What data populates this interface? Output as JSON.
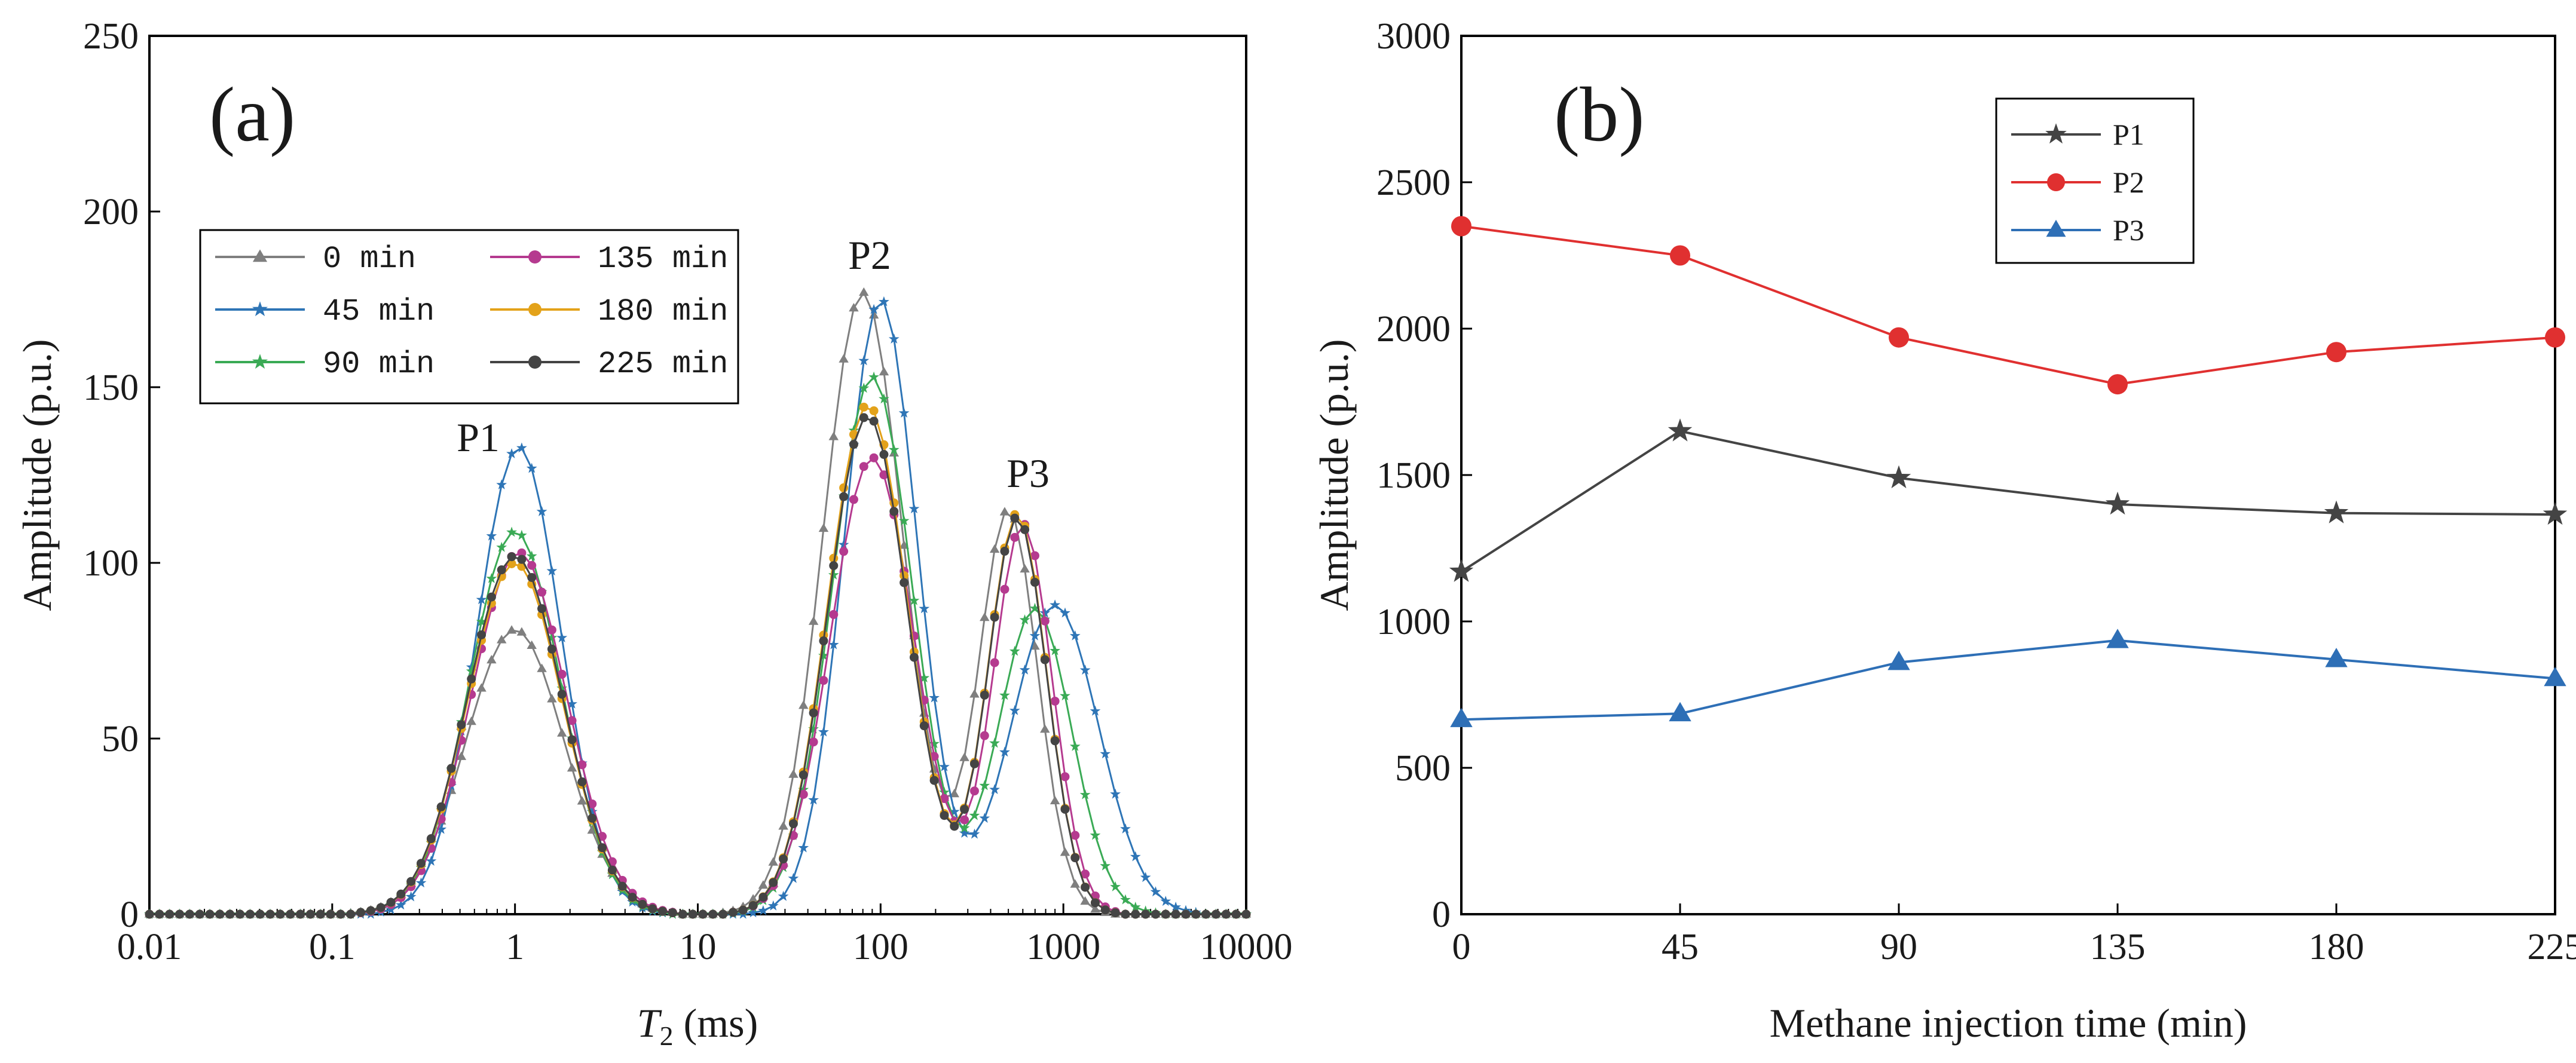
{
  "chart_data": [
    {
      "type": "line",
      "panel_label": "(a)",
      "xlabel_italic": "T",
      "xlabel_sub": "2",
      "xlabel_rest": " (ms)",
      "ylabel": "Amplitude (p.u.)",
      "xscale": "log",
      "xlim": [
        0.01,
        10000
      ],
      "ylim": [
        0,
        250
      ],
      "xticks": [
        "0.01",
        "0.1",
        "1",
        "10",
        "100",
        "1000",
        "10000"
      ],
      "yticks": [
        "0",
        "50",
        "100",
        "150",
        "200",
        "250"
      ],
      "legend_position": "upper-left",
      "peak_labels": [
        "P1",
        "P2",
        "P3"
      ],
      "series": [
        {
          "name": "0 min",
          "color": "#7f7f7f",
          "marker": "triangle",
          "peaks": [
            [
              1,
              81,
              0.27
            ],
            [
              80,
              177,
              0.22
            ],
            [
              500,
              115,
              0.16
            ]
          ]
        },
        {
          "name": "45 min",
          "color": "#2e75b6",
          "marker": "star",
          "peaks": [
            [
              1.05,
              133,
              0.23
            ],
            [
              100,
              175,
              0.2
            ],
            [
              900,
              88,
              0.24
            ]
          ]
        },
        {
          "name": "90 min",
          "color": "#3aaa55",
          "marker": "star",
          "peaks": [
            [
              1,
              109,
              0.25
            ],
            [
              90,
              153,
              0.22
            ],
            [
              700,
              87,
              0.2
            ]
          ]
        },
        {
          "name": "135 min",
          "color": "#b53a8f",
          "marker": "circle",
          "peaks": [
            [
              1.05,
              103,
              0.26
            ],
            [
              90,
              130,
              0.23
            ],
            [
              600,
              111,
              0.16
            ]
          ]
        },
        {
          "name": "180 min",
          "color": "#e3a21a",
          "marker": "circle",
          "peaks": [
            [
              1,
              100,
              0.26
            ],
            [
              85,
              145,
              0.22
            ],
            [
              560,
              114,
              0.16
            ]
          ]
        },
        {
          "name": "225 min",
          "color": "#444444",
          "marker": "circle",
          "peaks": [
            [
              1,
              102,
              0.26
            ],
            [
              85,
              142,
              0.22
            ],
            [
              560,
              113,
              0.16
            ]
          ]
        }
      ]
    },
    {
      "type": "line",
      "panel_label": "(b)",
      "xlabel": "Methane injection time (min)",
      "ylabel": "Amplitude (p.u.)",
      "xlim": [
        0,
        225
      ],
      "ylim": [
        0,
        3000
      ],
      "categories": [
        0,
        45,
        90,
        135,
        180,
        225
      ],
      "xticks": [
        "0",
        "45",
        "90",
        "135",
        "180",
        "225"
      ],
      "yticks": [
        "0",
        "500",
        "1000",
        "1500",
        "2000",
        "2500",
        "3000"
      ],
      "legend_position": "top-right",
      "series": [
        {
          "name": "P1",
          "color": "#444444",
          "marker": "star",
          "values": [
            1170,
            1650,
            1490,
            1400,
            1370,
            1365
          ]
        },
        {
          "name": "P2",
          "color": "#e03030",
          "marker": "circle",
          "values": [
            2350,
            2250,
            1970,
            1810,
            1920,
            1970
          ]
        },
        {
          "name": "P3",
          "color": "#2e6fb6",
          "marker": "triangle",
          "values": [
            665,
            685,
            860,
            935,
            870,
            805
          ]
        }
      ]
    }
  ]
}
